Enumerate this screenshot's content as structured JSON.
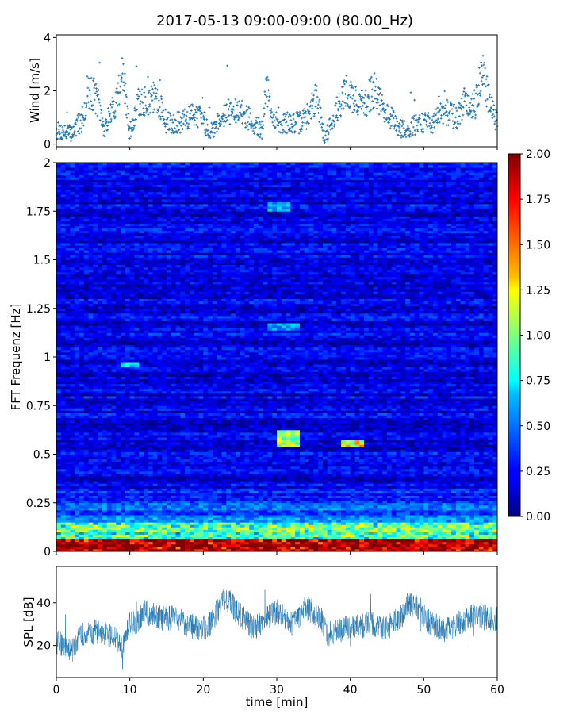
{
  "chart_data": {
    "title": "2017-05-13 09:00-09:00 (80.00_Hz)",
    "panels": [
      {
        "id": "wind",
        "type": "scatter",
        "ylabel": "Wind [m/s]",
        "xlim": [
          0,
          60
        ],
        "ylim": [
          -0.1,
          4.1
        ],
        "yticks": [
          0,
          2,
          4
        ],
        "ytick_labels": [
          "0",
          "2",
          "4"
        ],
        "color": "#1f77b4",
        "marker": "plus",
        "shape_points": {
          "x": [
            0,
            2,
            3.5,
            4.5,
            5.5,
            6.5,
            8,
            9,
            10,
            11,
            12.5,
            13.5,
            15,
            17,
            19,
            21,
            23,
            25,
            26.5,
            28,
            28.5,
            29.5,
            31,
            33,
            34,
            35.5,
            36.5,
            38,
            39.5,
            41,
            42,
            43,
            45,
            46.5,
            48,
            49.5,
            51,
            53,
            54.5,
            55.5,
            57,
            58,
            59,
            60
          ],
          "y": [
            0.5,
            0.4,
            0.9,
            2.0,
            1.7,
            0.5,
            1.5,
            2.7,
            0.4,
            1.5,
            1.6,
            1.8,
            0.8,
            0.8,
            1.2,
            0.5,
            1.2,
            1.2,
            0.9,
            0.5,
            2.3,
            0.8,
            0.8,
            0.8,
            1.0,
            1.8,
            0.2,
            1.2,
            2.0,
            1.5,
            1.5,
            2.0,
            1.2,
            0.6,
            0.6,
            0.8,
            0.8,
            1.2,
            1.0,
            1.6,
            1.5,
            2.8,
            1.5,
            0.8
          ]
        }
      },
      {
        "id": "spectrogram",
        "type": "heatmap",
        "ylabel": "FFT Frequenz [Hz]",
        "xlim": [
          0,
          60
        ],
        "ylim": [
          0,
          2
        ],
        "yticks": [
          0,
          0.25,
          0.5,
          0.75,
          1,
          1.25,
          1.5,
          1.75,
          2
        ],
        "ytick_labels": [
          "0",
          "0.25",
          "0.5",
          "0.75",
          "1",
          "1.25",
          "1.5",
          "1.75",
          "2"
        ],
        "colormap": "jet",
        "colorbar": {
          "vmin": 0,
          "vmax": 2,
          "ticks": [
            0,
            0.25,
            0.5,
            0.75,
            1,
            1.25,
            1.5,
            1.75,
            2
          ],
          "tick_labels": [
            "0.00",
            "0.25",
            "0.50",
            "0.75",
            "1.00",
            "1.25",
            "1.50",
            "1.75",
            "2.00"
          ]
        },
        "features": [
          {
            "t0": 30,
            "t1": 33,
            "f0": 0.54,
            "f1": 0.62,
            "value": 1.1
          },
          {
            "t0": 39,
            "t1": 42,
            "f0": 0.54,
            "f1": 0.58,
            "value": 1.3
          },
          {
            "t0": 9,
            "t1": 11,
            "f0": 0.95,
            "f1": 0.98,
            "value": 0.7
          },
          {
            "t0": 29,
            "t1": 32,
            "f0": 1.75,
            "f1": 1.8,
            "value": 0.6
          },
          {
            "t0": 29,
            "t1": 33,
            "f0": 1.14,
            "f1": 1.17,
            "value": 0.6
          }
        ]
      },
      {
        "id": "spl",
        "type": "line",
        "ylabel": "SPL [dB]",
        "xlabel": "time [min]",
        "xlim": [
          0,
          60
        ],
        "ylim": [
          5,
          57
        ],
        "yticks": [
          20,
          40
        ],
        "ytick_labels": [
          "20",
          "40"
        ],
        "xticks": [
          0,
          10,
          20,
          30,
          40,
          50,
          60
        ],
        "xtick_labels": [
          "0",
          "10",
          "20",
          "30",
          "40",
          "50",
          "60"
        ],
        "color": "#1f77b4",
        "envelope": {
          "x": [
            0,
            2,
            3.5,
            6,
            8,
            9,
            10,
            11,
            12,
            14,
            16,
            19,
            21,
            22,
            23,
            25,
            27,
            30,
            32,
            34,
            36,
            37,
            39,
            41,
            43,
            45,
            47,
            48,
            49.5,
            51,
            53,
            55,
            57,
            60
          ],
          "y": [
            22,
            17,
            25,
            27,
            24,
            19,
            30,
            30,
            36,
            33,
            33,
            28,
            30,
            37,
            43,
            34,
            28,
            36,
            30,
            38,
            33,
            25,
            28,
            29,
            30,
            28,
            34,
            40,
            37,
            30,
            27,
            31,
            34,
            32
          ]
        }
      }
    ]
  }
}
